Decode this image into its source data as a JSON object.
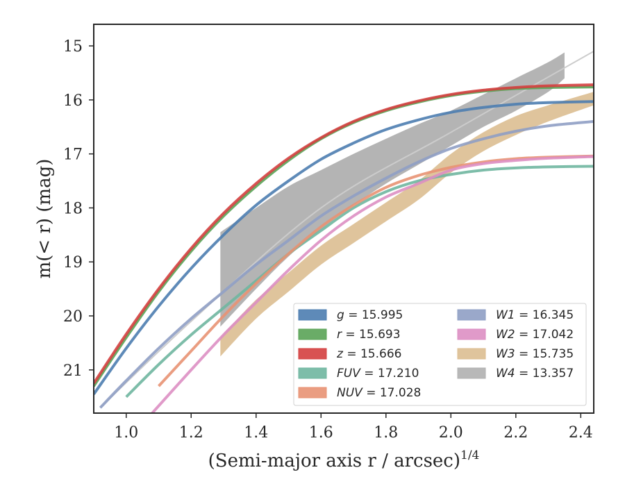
{
  "chart_data": {
    "type": "line",
    "title": "",
    "xlabel": "(Semi-major axis r / arcsec)",
    "xlabel_sup": "1/4",
    "ylabel": "m(< r) (mag)",
    "xlim": [
      0.9,
      2.44
    ],
    "ylim": [
      21.8,
      14.6
    ],
    "y_inverted": true,
    "grid": false,
    "legend_position": "lower-right",
    "x_ticks": [
      "1.0",
      "1.2",
      "1.4",
      "1.6",
      "1.8",
      "2.0",
      "2.2",
      "2.4"
    ],
    "y_ticks": [
      "15",
      "16",
      "17",
      "18",
      "19",
      "20",
      "21"
    ],
    "series": [
      {
        "label": "g = 15.995",
        "color": "#4c7db0",
        "kind": "line",
        "x": [
          0.9,
          1.0,
          1.1,
          1.2,
          1.3,
          1.4,
          1.5,
          1.6,
          1.7,
          1.8,
          1.9,
          2.0,
          2.1,
          2.2,
          2.3,
          2.44
        ],
        "y": [
          21.45,
          20.6,
          19.82,
          19.12,
          18.5,
          17.95,
          17.5,
          17.1,
          16.8,
          16.55,
          16.37,
          16.23,
          16.14,
          16.08,
          16.05,
          16.03
        ]
      },
      {
        "label": "r = 15.693",
        "color": "#5aa356",
        "kind": "line",
        "x": [
          0.9,
          1.0,
          1.1,
          1.2,
          1.3,
          1.4,
          1.5,
          1.6,
          1.7,
          1.8,
          1.9,
          2.0,
          2.1,
          2.2,
          2.3,
          2.44
        ],
        "y": [
          21.3,
          20.4,
          19.55,
          18.8,
          18.15,
          17.6,
          17.12,
          16.72,
          16.42,
          16.2,
          16.04,
          15.92,
          15.84,
          15.79,
          15.77,
          15.76
        ]
      },
      {
        "label": "z = 15.666",
        "color": "#d43f3f",
        "kind": "line",
        "x": [
          0.9,
          1.0,
          1.1,
          1.2,
          1.3,
          1.4,
          1.5,
          1.6,
          1.7,
          1.8,
          1.9,
          2.0,
          2.1,
          2.2,
          2.3,
          2.44
        ],
        "y": [
          21.25,
          20.34,
          19.5,
          18.75,
          18.1,
          17.55,
          17.08,
          16.7,
          16.4,
          16.18,
          16.02,
          15.9,
          15.82,
          15.77,
          15.74,
          15.72
        ]
      },
      {
        "label": "FUV = 17.210",
        "color": "#6fb6a0",
        "kind": "line",
        "x": [
          1.0,
          1.1,
          1.2,
          1.3,
          1.4,
          1.5,
          1.6,
          1.7,
          1.8,
          1.9,
          2.0,
          2.1,
          2.2,
          2.3,
          2.44
        ],
        "y": [
          21.5,
          20.9,
          20.35,
          19.85,
          19.35,
          18.85,
          18.42,
          18.0,
          17.7,
          17.5,
          17.38,
          17.3,
          17.26,
          17.24,
          17.23
        ]
      },
      {
        "label": "NUV = 17.028",
        "color": "#e89273",
        "kind": "line",
        "x": [
          1.1,
          1.2,
          1.3,
          1.4,
          1.5,
          1.6,
          1.7,
          1.8,
          1.9,
          2.0,
          2.1,
          2.2,
          2.3,
          2.44
        ],
        "y": [
          21.3,
          20.65,
          20.0,
          19.4,
          18.85,
          18.35,
          17.95,
          17.62,
          17.4,
          17.25,
          17.15,
          17.09,
          17.06,
          17.04
        ]
      },
      {
        "label": "W1 = 16.345",
        "color": "#8f9fc4",
        "kind": "line",
        "x": [
          0.92,
          1.0,
          1.1,
          1.2,
          1.3,
          1.4,
          1.5,
          1.6,
          1.7,
          1.8,
          1.9,
          2.0,
          2.1,
          2.2,
          2.3,
          2.44
        ],
        "y": [
          21.7,
          21.2,
          20.6,
          20.05,
          19.55,
          19.05,
          18.6,
          18.15,
          17.78,
          17.45,
          17.15,
          16.9,
          16.72,
          16.58,
          16.48,
          16.4
        ]
      },
      {
        "label": "W2 = 17.042",
        "color": "#dd8fc3",
        "kind": "line",
        "x": [
          1.08,
          1.2,
          1.3,
          1.4,
          1.5,
          1.6,
          1.7,
          1.8,
          1.9,
          2.0,
          2.1,
          2.2,
          2.3,
          2.44
        ],
        "y": [
          21.8,
          21.0,
          20.35,
          19.75,
          19.15,
          18.6,
          18.15,
          17.8,
          17.55,
          17.3,
          17.18,
          17.12,
          17.08,
          17.05
        ]
      },
      {
        "label": "W3 = 15.735",
        "color": "#dcbe91",
        "kind": "band",
        "x": [
          1.29,
          1.4,
          1.5,
          1.6,
          1.7,
          1.8,
          1.9,
          2.0,
          2.1,
          2.2,
          2.3,
          2.44
        ],
        "y_low": [
          20.4,
          19.7,
          19.2,
          18.7,
          18.3,
          17.9,
          17.5,
          17.0,
          16.6,
          16.3,
          16.1,
          15.85
        ],
        "y_high": [
          20.75,
          20.05,
          19.55,
          19.05,
          18.65,
          18.25,
          17.85,
          17.35,
          16.95,
          16.65,
          16.4,
          16.1
        ]
      },
      {
        "label": "W4 = 13.357",
        "color": "#b0b0b0",
        "kind": "band",
        "x": [
          1.29,
          1.4,
          1.5,
          1.6,
          1.7,
          1.8,
          1.9,
          2.0,
          2.1,
          2.2,
          2.3,
          2.35
        ],
        "y_low": [
          18.45,
          18.0,
          17.6,
          17.3,
          17.0,
          16.72,
          16.45,
          16.2,
          15.9,
          15.6,
          15.3,
          15.12
        ],
        "y_high": [
          20.2,
          19.5,
          18.9,
          18.4,
          17.95,
          17.55,
          17.2,
          16.85,
          16.5,
          16.2,
          15.85,
          15.6
        ]
      }
    ],
    "reference_line": {
      "color": "#cccccc",
      "x": [
        0.92,
        1.2,
        1.6,
        2.0,
        2.44
      ],
      "y": [
        21.7,
        20.1,
        18.0,
        16.6,
        15.1
      ]
    }
  }
}
